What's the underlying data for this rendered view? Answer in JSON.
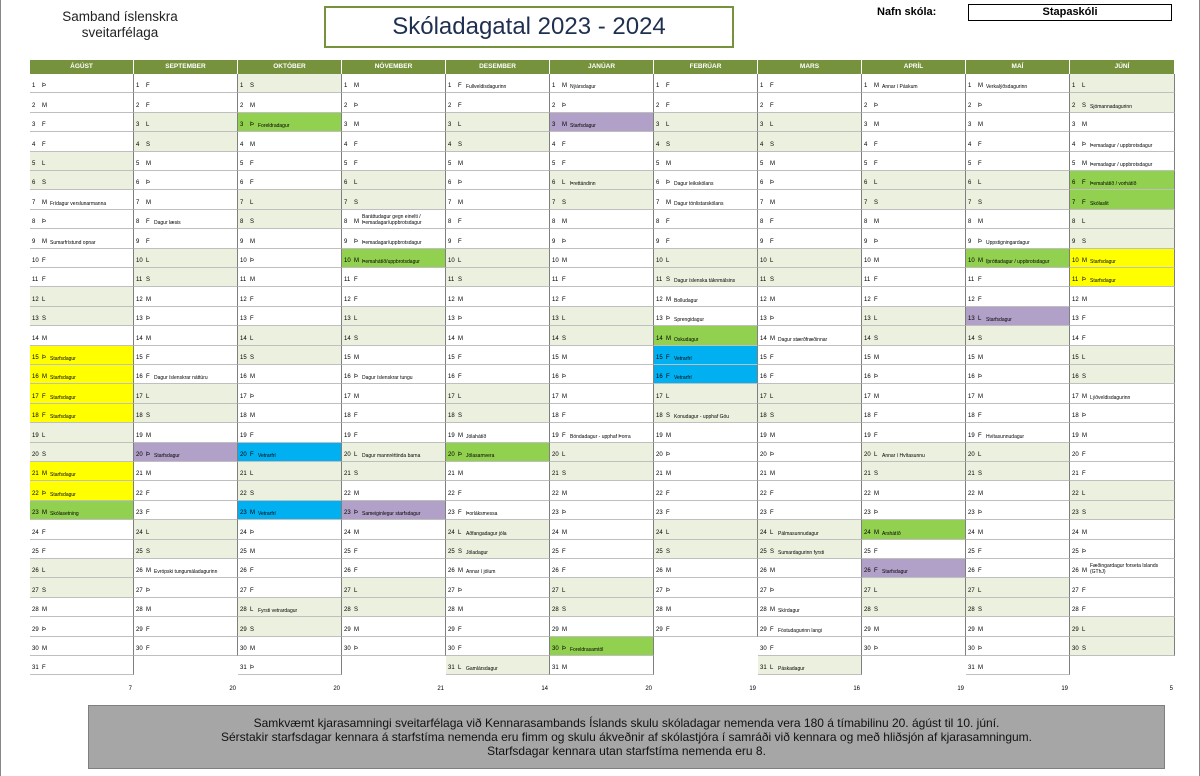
{
  "header": {
    "organization_line1": "Samband íslenskra",
    "organization_line2": "sveitarfélaga",
    "title": "Skóladagatal 2023 - 2024",
    "school_label": "Nafn skóla:",
    "school_name": "Stapaskóli"
  },
  "colors": {
    "header_green": "#76923c",
    "weekend": "#ebf1de",
    "yellow": "#ffff00",
    "purple": "#b1a0c7",
    "blue": "#00b0f0",
    "green": "#92d050"
  },
  "months": [
    {
      "name": "ÁGÚST",
      "first": "Þ",
      "days": 31,
      "total": "7",
      "ev": {
        "7": "Frídagur verslunarmanna",
        "9": "Sumarfrístund opnar",
        "15": "Starfsdagur",
        "16": "Starfsdagur",
        "17": "Starfsdagur",
        "18": "Starfsdagur",
        "21": "Starfsdagur",
        "22": "Starfsdagur",
        "23": "Skólasetning"
      },
      "col": {
        "15": "yellow",
        "16": "yellow",
        "17": "yellow",
        "18": "yellow",
        "21": "yellow",
        "22": "yellow",
        "23": "green"
      }
    },
    {
      "name": "SEPTEMBER",
      "first": "F",
      "days": 30,
      "total": "20",
      "ev": {
        "8": "Dagur læsis",
        "16": "Dagur íslenskrar náttúru",
        "20": "Starfsdagur",
        "26": "Evrópski tungumáladagurinn"
      },
      "col": {
        "20": "purple"
      }
    },
    {
      "name": "OKTÓBER",
      "first": "S",
      "days": 31,
      "total": "20",
      "ev": {
        "3": "Foreldradagur",
        "20": "Vetrarfrí",
        "23": "Vetrarfrí",
        "28": "Fyrsti vetrardagur"
      },
      "col": {
        "3": "green",
        "20": "blue",
        "23": "blue"
      }
    },
    {
      "name": "NÓVEMBER",
      "first": "M",
      "days": 30,
      "total": "21",
      "ev": {
        "8": "Baráttudagur gegn einelti / Þemadagar/uppbrotsdagur",
        "9": "Þemadagar/uppbrotsdagur",
        "10": "Þemahátíð/uppbrotsdagur",
        "16": "Dagur íslenskrar tungu",
        "20": "Dagur mannréttinda barna",
        "23": "Sameiginlegur starfsdagur"
      },
      "col": {
        "10": "green",
        "23": "purple"
      }
    },
    {
      "name": "DESEMBER",
      "first": "F",
      "days": 31,
      "total": "14",
      "ev": {
        "1": "Fullveldisdagurinn",
        "19": "Jólahátíð",
        "20": "Jólasamvera",
        "23": "Þorláksmessa",
        "24": "Aðfangadagur jóla",
        "25": "Jóladagur",
        "26": "Annar í jólum",
        "31": "Gamlársdagur"
      },
      "col": {
        "20": "green"
      }
    },
    {
      "name": "JANÚAR",
      "first": "M",
      "days": 31,
      "total": "20",
      "ev": {
        "1": "Nýársdagur",
        "3": "Starfsdagur",
        "6": "Þrettándinn",
        "19": "Bóndadagur - upphaf Þorra",
        "30": "Foreldrasamtöl"
      },
      "col": {
        "3": "purple",
        "30": "green"
      }
    },
    {
      "name": "FEBRÚAR",
      "first": "F",
      "days": 29,
      "total": "19",
      "ev": {
        "6": "Dagur leikskólans",
        "7": "Dagur tónlistarskólans",
        "11": "Dagur íslenska táknmálsins",
        "12": "Bolludagur",
        "13": "Sprengidagur",
        "14": "Öskudagur",
        "15": "Vetrarfrí",
        "16": "Vetrarfrí",
        "18": "Konudagur - upphaf Góu"
      },
      "col": {
        "14": "green",
        "15": "blue",
        "16": "blue"
      }
    },
    {
      "name": "MARS",
      "first": "F",
      "days": 31,
      "total": "16",
      "ev": {
        "14": "Dagur stærðfræðinnar",
        "24": "Pálmasunnudagur",
        "25": "Sumardagurinn fyrsti",
        "28": "Skírdagur",
        "29": "Föstudagurinn langi",
        "31": "Páskadagur"
      },
      "col": {}
    },
    {
      "name": "APRÍL",
      "first": "M",
      "days": 30,
      "total": "19",
      "ev": {
        "1": "Annar í Páskum",
        "20": "Annar í Hvítasunnu",
        "24": "Árshátíð",
        "26": "Starfsdagur"
      },
      "col": {
        "24": "green",
        "26": "purple"
      }
    },
    {
      "name": "MAÍ",
      "first": "M",
      "days": 31,
      "total": "19",
      "ev": {
        "1": "Verkalýðsdagurinn",
        "9": "Uppstigningardagur",
        "10": "Íþróttadagur / uppbrotsdagur",
        "13": "Starfsdagur",
        "19": "Hvítasunnudagur"
      },
      "col": {
        "10": "green",
        "13": "purple"
      }
    },
    {
      "name": "JÚNÍ",
      "first": "L",
      "days": 30,
      "total": "5",
      "ev": {
        "2": "Sjómannadagurinn",
        "4": "Þemadagur / uppbrotsdagur",
        "5": "Þemadagur / uppbrotsdagur",
        "6": "Þemahátíð / vorhátíð",
        "7": "Skólaslit",
        "10": "Starfsdagur",
        "11": "Starfsdagur",
        "17": "Lýðveldisdagurinn",
        "26": "Fæðingardagur forseta Íslands (GThJ)"
      },
      "col": {
        "6": "green",
        "7": "green",
        "10": "yellow",
        "11": "yellow"
      }
    }
  ],
  "day_letters": [
    "M",
    "Þ",
    "M",
    "F",
    "F",
    "L",
    "S"
  ],
  "notes": [
    "Samkvæmt kjarasamningi sveitarfélaga við Kennarasambands Íslands skulu skóladagar nemenda vera 180 á tímabilinu 20. ágúst til 10. júní.",
    "Sérstakir starfsdagar kennara á starfstíma nemenda eru fimm og skulu ákveðnir af skólastjóra í samráði við kennara og með hliðsjón af kjarasamningum.",
    "Starfsdagar kennara utan starfstíma nemenda eru 8."
  ]
}
